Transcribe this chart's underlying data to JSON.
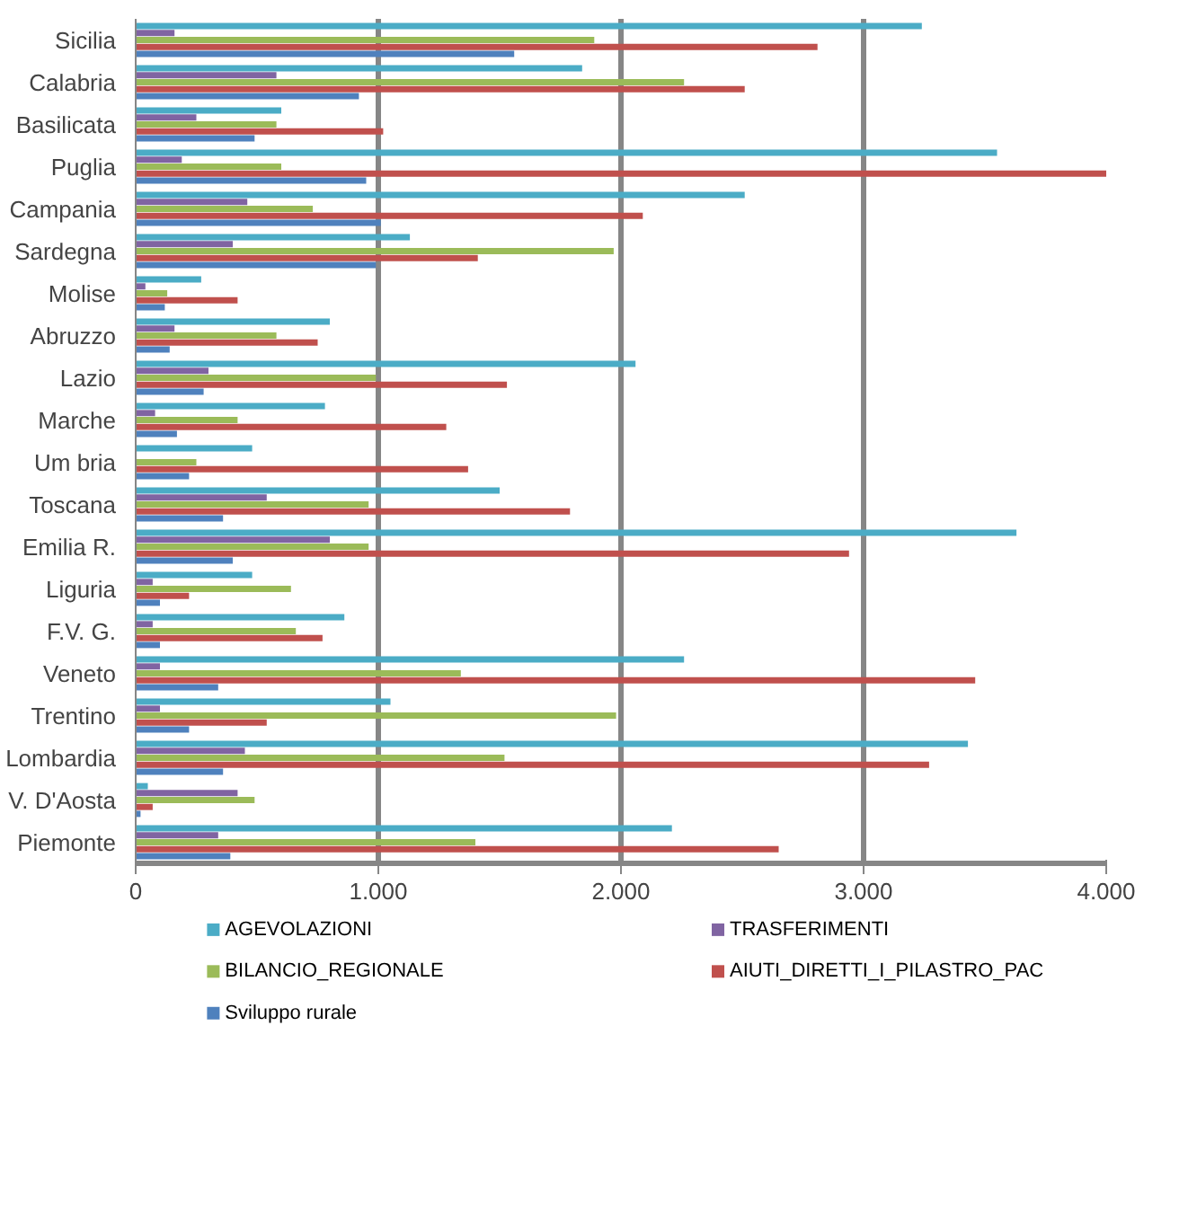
{
  "chart_data": {
    "type": "bar",
    "orientation": "horizontal",
    "categories": [
      "Sicilia",
      "Calabria",
      "Basilicata",
      "Puglia",
      "Campania",
      "Sardegna",
      "Molise",
      "Abruzzo",
      "Lazio",
      "Marche",
      "Um bria",
      "Toscana",
      "Emilia R.",
      "Liguria",
      "F.V. G.",
      "Veneto",
      "Trentino",
      "Lombardia",
      "V. D'Aosta",
      "Piemonte"
    ],
    "series": [
      {
        "name": "AGEVOLAZIONI",
        "color": "#4bacc6",
        "values": [
          3240,
          1840,
          600,
          3550,
          2510,
          1130,
          270,
          800,
          2060,
          780,
          480,
          1500,
          3630,
          480,
          860,
          2260,
          1050,
          3430,
          50,
          2210
        ]
      },
      {
        "name": "TRASFERIMENTI",
        "color": "#8064a2",
        "values": [
          160,
          580,
          250,
          190,
          460,
          400,
          40,
          160,
          300,
          80,
          0,
          540,
          800,
          70,
          70,
          100,
          100,
          450,
          420,
          340
        ]
      },
      {
        "name": "BILANCIO_REGIONALE",
        "color": "#9bbb59",
        "values": [
          1890,
          2260,
          580,
          600,
          730,
          1970,
          130,
          580,
          990,
          420,
          250,
          960,
          960,
          640,
          660,
          1340,
          1980,
          1520,
          490,
          1400
        ]
      },
      {
        "name": "AIUTI_DIRETTI_I_PILASTRO_PAC",
        "color": "#c0504d",
        "values": [
          2810,
          2510,
          1020,
          4000,
          2090,
          1410,
          420,
          750,
          1530,
          1280,
          1370,
          1790,
          2940,
          220,
          770,
          3460,
          540,
          3270,
          70,
          2650
        ]
      },
      {
        "name": "Sviluppo rurale",
        "color": "#4f81bd",
        "values": [
          1560,
          920,
          490,
          950,
          1010,
          990,
          120,
          140,
          280,
          170,
          220,
          360,
          400,
          100,
          100,
          340,
          220,
          360,
          20,
          390
        ]
      }
    ],
    "xlim": [
      0,
      4000
    ],
    "xticks": [
      {
        "value": 0,
        "label": "0"
      },
      {
        "value": 1000,
        "label": "1.000"
      },
      {
        "value": 2000,
        "label": "2.000"
      },
      {
        "value": 3000,
        "label": "3.000"
      },
      {
        "value": 4000,
        "label": "4.000"
      }
    ],
    "grid": "x",
    "legend": "bottom"
  }
}
